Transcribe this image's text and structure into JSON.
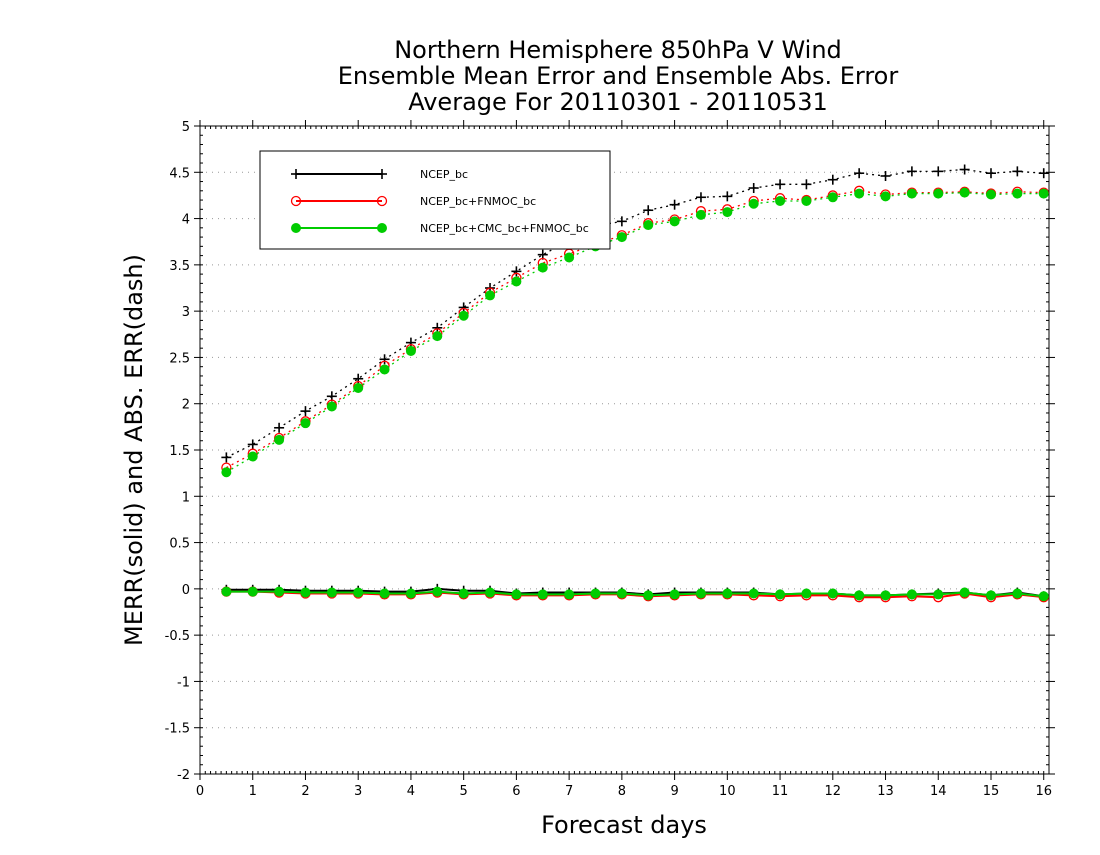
{
  "chart_data": {
    "type": "line",
    "title": [
      "Northern Hemisphere 850hPa V Wind",
      "Ensemble Mean Error and Ensemble Abs. Error",
      "Average For 20110301 - 20110531"
    ],
    "xlabel": "Forecast days",
    "ylabel": "MERR(solid) and ABS. ERR(dash)",
    "xlim": [
      0,
      16.1
    ],
    "ylim": [
      -2,
      5
    ],
    "x_ticks": [
      0,
      1,
      2,
      3,
      4,
      5,
      6,
      7,
      8,
      9,
      10,
      11,
      12,
      13,
      14,
      15,
      16
    ],
    "y_ticks": [
      -2,
      -1.5,
      -1,
      -0.5,
      0,
      0.5,
      1,
      1.5,
      2,
      2.5,
      3,
      3.5,
      4,
      4.5,
      5
    ],
    "y_tick_labels": [
      "-2",
      "-1.5",
      "-1",
      "-0.5",
      "0",
      "0.5",
      "1",
      "1.5",
      "2",
      "2.5",
      "3",
      "3.5",
      "4",
      "4.5",
      "5"
    ],
    "grid": "horizontal dotted",
    "legend_position": "top-left",
    "x": [
      0.5,
      1,
      1.5,
      2,
      2.5,
      3,
      3.5,
      4,
      4.5,
      5,
      5.5,
      6,
      6.5,
      7,
      7.5,
      8,
      8.5,
      9,
      9.5,
      10,
      10.5,
      11,
      11.5,
      12,
      12.5,
      13,
      13.5,
      14,
      14.5,
      15,
      15.5,
      16
    ],
    "series": [
      {
        "name": "NCEP_bc",
        "color": "#000000",
        "marker": "plus",
        "abs_err": [
          1.42,
          1.56,
          1.74,
          1.92,
          2.08,
          2.27,
          2.48,
          2.66,
          2.82,
          3.04,
          3.25,
          3.43,
          3.61,
          3.76,
          3.92,
          3.97,
          4.09,
          4.15,
          4.23,
          4.24,
          4.33,
          4.37,
          4.37,
          4.42,
          4.49,
          4.46,
          4.51,
          4.51,
          4.53,
          4.49,
          4.51,
          4.49
        ],
        "mean_err": [
          -0.01,
          -0.01,
          -0.01,
          -0.02,
          -0.02,
          -0.02,
          -0.03,
          -0.03,
          0.0,
          -0.02,
          -0.02,
          -0.05,
          -0.04,
          -0.04,
          -0.04,
          -0.04,
          -0.06,
          -0.04,
          -0.04,
          -0.04,
          -0.04,
          -0.06,
          -0.05,
          -0.05,
          -0.07,
          -0.07,
          -0.06,
          -0.05,
          -0.04,
          -0.07,
          -0.04,
          -0.08
        ]
      },
      {
        "name": "NCEP_bc+FNMOC_bc",
        "color": "#ff0000",
        "marker": "open-circle",
        "abs_err": [
          1.31,
          1.46,
          1.63,
          1.81,
          1.99,
          2.19,
          2.41,
          2.59,
          2.76,
          2.98,
          3.2,
          3.36,
          3.52,
          3.62,
          3.72,
          3.82,
          3.95,
          3.99,
          4.08,
          4.1,
          4.19,
          4.22,
          4.2,
          4.25,
          4.3,
          4.26,
          4.28,
          4.28,
          4.29,
          4.27,
          4.29,
          4.28
        ],
        "mean_err": [
          -0.03,
          -0.03,
          -0.04,
          -0.05,
          -0.05,
          -0.05,
          -0.06,
          -0.06,
          -0.04,
          -0.06,
          -0.05,
          -0.07,
          -0.07,
          -0.07,
          -0.06,
          -0.06,
          -0.08,
          -0.07,
          -0.06,
          -0.06,
          -0.07,
          -0.08,
          -0.07,
          -0.07,
          -0.09,
          -0.09,
          -0.08,
          -0.09,
          -0.05,
          -0.09,
          -0.06,
          -0.09
        ]
      },
      {
        "name": "NCEP_bc+CMC_bc+FNMOC_bc",
        "color": "#00cc00",
        "marker": "filled-circle",
        "abs_err": [
          1.26,
          1.43,
          1.61,
          1.79,
          1.97,
          2.17,
          2.37,
          2.57,
          2.73,
          2.95,
          3.17,
          3.32,
          3.47,
          3.58,
          3.7,
          3.8,
          3.93,
          3.97,
          4.04,
          4.07,
          4.16,
          4.19,
          4.19,
          4.23,
          4.27,
          4.24,
          4.27,
          4.27,
          4.28,
          4.26,
          4.27,
          4.27
        ],
        "mean_err": [
          -0.03,
          -0.03,
          -0.03,
          -0.04,
          -0.04,
          -0.04,
          -0.05,
          -0.05,
          -0.03,
          -0.05,
          -0.04,
          -0.06,
          -0.06,
          -0.06,
          -0.05,
          -0.05,
          -0.07,
          -0.06,
          -0.05,
          -0.05,
          -0.05,
          -0.06,
          -0.05,
          -0.05,
          -0.07,
          -0.07,
          -0.06,
          -0.06,
          -0.04,
          -0.07,
          -0.05,
          -0.08
        ]
      }
    ]
  }
}
